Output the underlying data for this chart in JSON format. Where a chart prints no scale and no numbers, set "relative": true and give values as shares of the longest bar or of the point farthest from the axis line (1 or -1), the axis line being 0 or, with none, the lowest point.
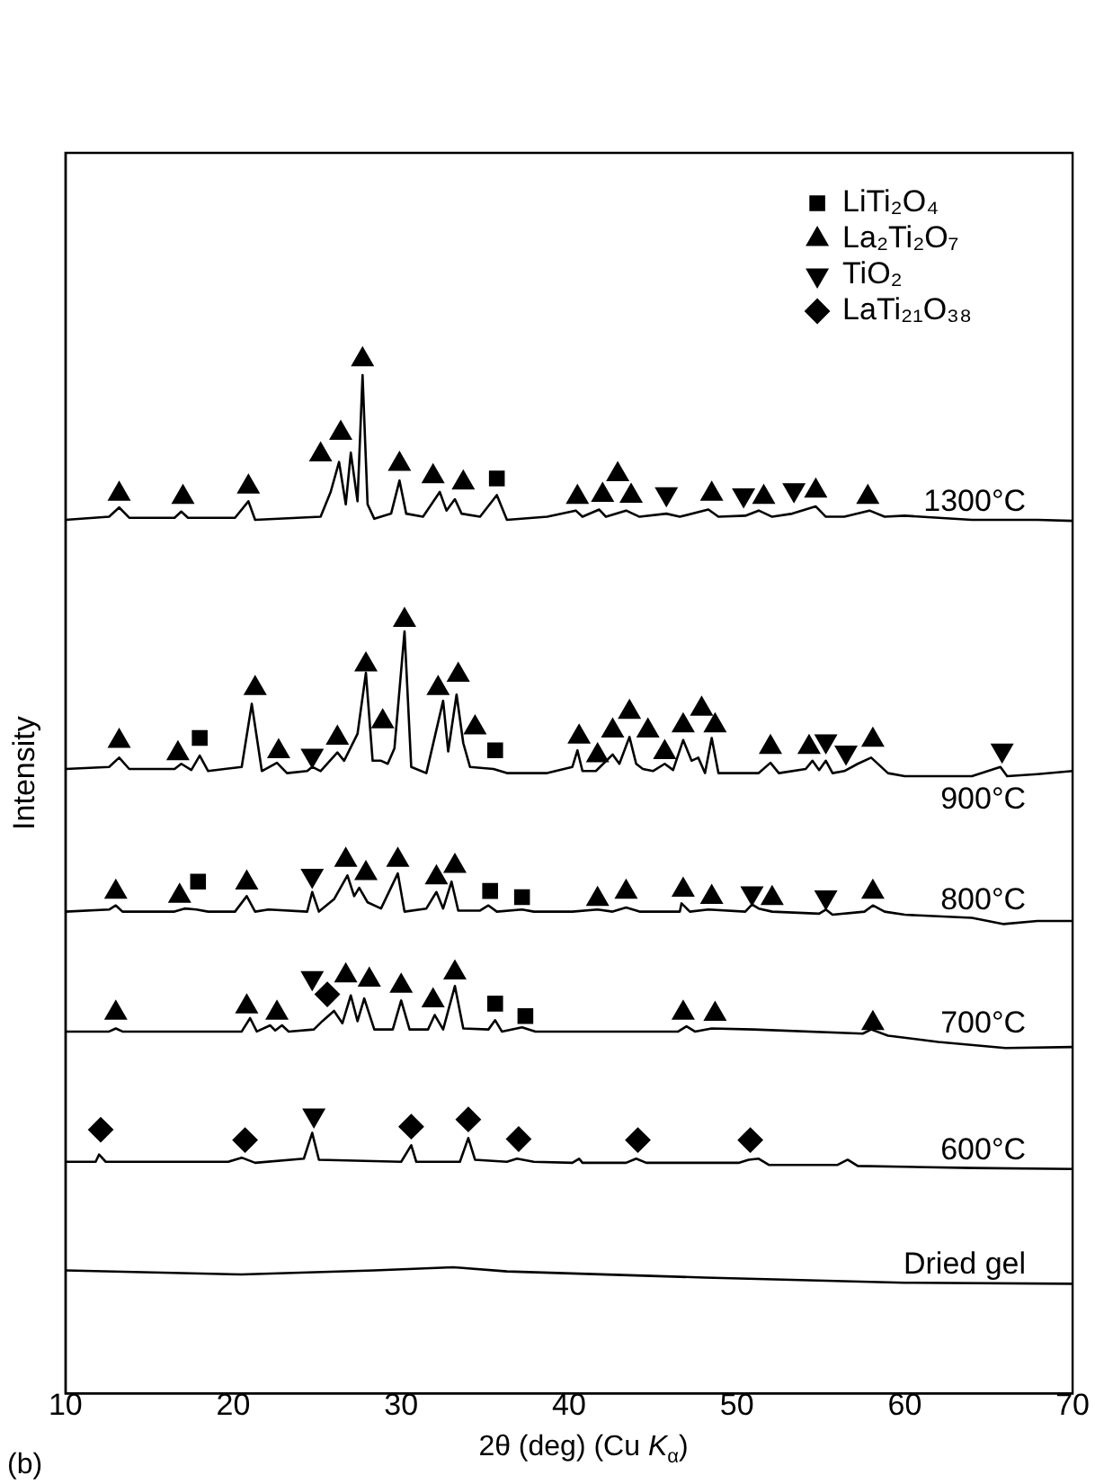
{
  "chart_data": {
    "type": "line",
    "relative": true,
    "xlim": [
      10,
      70
    ],
    "xticks": [
      10,
      20,
      30,
      40,
      50,
      60,
      70
    ],
    "xlabel": "2θ (deg) (Cu K$_{α}$)",
    "ylabel": "Intensity",
    "grid": false,
    "legend": "top right",
    "annotations": [
      "(b)"
    ],
    "series": [
      {
        "name": "1300°C",
        "type": "line",
        "marker": "none",
        "color": "#000000",
        "x": [
          10,
          12.6,
          13.2,
          13.8,
          16.5,
          16.9,
          17.3,
          20.1,
          20.9,
          21.3,
          25.2,
          25.8,
          26.3,
          26.7,
          27.0,
          27.4,
          27.7,
          28.0,
          28.4,
          29.4,
          29.9,
          30.3,
          31.3,
          32.3,
          32.7,
          33.2,
          33.6,
          34.7,
          35.7,
          36.3,
          38.7,
          40.4,
          40.8,
          41.8,
          42.2,
          43.4,
          44.2,
          45.8,
          46.6,
          48.3,
          48.9,
          50.5,
          51.3,
          52.1,
          53.3,
          54.7,
          55.3,
          56.4,
          57.9,
          58.8,
          60.0,
          64.0,
          67.9,
          70
        ],
        "values": [
          0.845,
          0.848,
          0.857,
          0.847,
          0.847,
          0.853,
          0.847,
          0.847,
          0.863,
          0.845,
          0.848,
          0.872,
          0.901,
          0.86,
          0.91,
          0.863,
          0.985,
          0.86,
          0.846,
          0.851,
          0.883,
          0.851,
          0.848,
          0.872,
          0.854,
          0.865,
          0.851,
          0.848,
          0.869,
          0.845,
          0.848,
          0.854,
          0.848,
          0.855,
          0.848,
          0.854,
          0.848,
          0.851,
          0.848,
          0.855,
          0.848,
          0.849,
          0.854,
          0.848,
          0.851,
          0.858,
          0.848,
          0.848,
          0.854,
          0.848,
          0.849,
          0.845,
          0.845,
          0.844
        ]
      },
      {
        "name": "900°C",
        "type": "line",
        "marker": "none",
        "color": "#000000",
        "x": [
          10,
          12.6,
          13.2,
          13.8,
          16.5,
          16.9,
          17.5,
          18.0,
          18.5,
          20.5,
          21.1,
          21.7,
          22.6,
          23.2,
          24.4,
          24.7,
          25.2,
          26.2,
          26.6,
          27.4,
          27.9,
          28.3,
          28.8,
          29.2,
          29.6,
          30.2,
          30.6,
          31.5,
          32.5,
          32.8,
          33.3,
          33.7,
          34.1,
          35.5,
          36.3,
          38.7,
          40.2,
          40.5,
          40.8,
          41.6,
          42.6,
          43.0,
          43.6,
          44.0,
          44.4,
          45.0,
          45.7,
          46.2,
          46.8,
          47.3,
          47.7,
          48.1,
          48.5,
          48.9,
          51.3,
          52.0,
          52.5,
          54.1,
          54.5,
          54.9,
          55.3,
          55.7,
          56.4,
          57.2,
          58.0,
          59.0,
          60.0,
          64.0,
          65.7,
          66.1,
          67.9,
          70
        ],
        "values": [
          0.604,
          0.606,
          0.615,
          0.604,
          0.604,
          0.609,
          0.603,
          0.617,
          0.602,
          0.606,
          0.667,
          0.602,
          0.61,
          0.6,
          0.602,
          0.606,
          0.602,
          0.62,
          0.612,
          0.638,
          0.697,
          0.612,
          0.612,
          0.609,
          0.624,
          0.737,
          0.606,
          0.6,
          0.67,
          0.621,
          0.676,
          0.629,
          0.606,
          0.604,
          0.6,
          0.6,
          0.606,
          0.622,
          0.602,
          0.602,
          0.618,
          0.609,
          0.635,
          0.609,
          0.604,
          0.602,
          0.609,
          0.603,
          0.632,
          0.612,
          0.615,
          0.6,
          0.634,
          0.6,
          0.6,
          0.61,
          0.6,
          0.604,
          0.612,
          0.603,
          0.612,
          0.6,
          0.602,
          0.609,
          0.615,
          0.6,
          0.597,
          0.597,
          0.606,
          0.597,
          0.599,
          0.602
        ]
      },
      {
        "name": "800°C",
        "type": "line",
        "marker": "none",
        "color": "#000000",
        "x": [
          10,
          12.6,
          13.0,
          13.4,
          16.5,
          17.1,
          17.8,
          18.5,
          20.1,
          20.8,
          21.3,
          22.1,
          24.4,
          24.7,
          25.1,
          26.0,
          26.8,
          27.2,
          27.5,
          28.0,
          28.8,
          29.8,
          30.2,
          31.5,
          32.1,
          32.5,
          33.0,
          33.4,
          34.7,
          35.2,
          35.7,
          37.2,
          37.9,
          40.2,
          41.7,
          42.6,
          43.4,
          44.2,
          46.6,
          46.7,
          47.2,
          48.3,
          50.5,
          50.9,
          51.3,
          52.1,
          54.9,
          55.3,
          55.7,
          57.6,
          58.1,
          58.8,
          60.0,
          64.0,
          65.9,
          67.9,
          70
        ],
        "values": [
          0.466,
          0.468,
          0.472,
          0.466,
          0.466,
          0.469,
          0.468,
          0.466,
          0.466,
          0.481,
          0.466,
          0.468,
          0.466,
          0.485,
          0.466,
          0.478,
          0.501,
          0.481,
          0.489,
          0.475,
          0.469,
          0.503,
          0.466,
          0.469,
          0.485,
          0.469,
          0.495,
          0.467,
          0.467,
          0.472,
          0.466,
          0.468,
          0.466,
          0.466,
          0.468,
          0.466,
          0.47,
          0.466,
          0.466,
          0.474,
          0.466,
          0.468,
          0.466,
          0.473,
          0.469,
          0.466,
          0.464,
          0.468,
          0.463,
          0.466,
          0.472,
          0.466,
          0.463,
          0.46,
          0.454,
          0.457,
          0.457
        ]
      },
      {
        "name": "700°C",
        "type": "line",
        "marker": "none",
        "color": "#000000",
        "x": [
          10,
          12.6,
          13.0,
          13.4,
          20.5,
          21.0,
          21.4,
          22.2,
          22.5,
          22.9,
          23.3,
          24.8,
          25.3,
          26.0,
          26.5,
          27.0,
          27.4,
          27.8,
          28.4,
          29.5,
          30.0,
          30.5,
          31.6,
          32.0,
          32.5,
          33.2,
          33.7,
          35.2,
          35.6,
          36.0,
          37.2,
          38.0,
          46.5,
          47.0,
          47.5,
          48.5,
          51.0,
          57.5,
          58.0,
          59.0,
          62.0,
          66.0,
          70
        ],
        "values": [
          0.35,
          0.35,
          0.353,
          0.35,
          0.35,
          0.363,
          0.35,
          0.356,
          0.351,
          0.356,
          0.35,
          0.352,
          0.36,
          0.37,
          0.358,
          0.385,
          0.36,
          0.382,
          0.352,
          0.352,
          0.38,
          0.352,
          0.352,
          0.366,
          0.352,
          0.394,
          0.353,
          0.352,
          0.361,
          0.35,
          0.354,
          0.35,
          0.35,
          0.355,
          0.35,
          0.353,
          0.352,
          0.348,
          0.352,
          0.346,
          0.34,
          0.334,
          0.335
        ]
      },
      {
        "name": "600°C",
        "type": "line",
        "marker": "none",
        "color": "#000000",
        "x": [
          10,
          11.8,
          12.0,
          12.4,
          19.7,
          20.5,
          21.3,
          24.2,
          24.7,
          25.1,
          30.0,
          30.6,
          30.9,
          33.5,
          34.0,
          34.4,
          36.3,
          36.9,
          37.9,
          40.2,
          40.6,
          40.8,
          43.4,
          44.0,
          44.6,
          50.1,
          50.7,
          51.3,
          51.9,
          56.0,
          56.6,
          57.2,
          64.0,
          70
        ],
        "values": [
          0.224,
          0.224,
          0.231,
          0.224,
          0.224,
          0.228,
          0.223,
          0.227,
          0.252,
          0.226,
          0.224,
          0.24,
          0.224,
          0.224,
          0.247,
          0.226,
          0.224,
          0.227,
          0.224,
          0.223,
          0.227,
          0.223,
          0.223,
          0.227,
          0.223,
          0.223,
          0.226,
          0.227,
          0.221,
          0.221,
          0.226,
          0.22,
          0.218,
          0.217
        ]
      },
      {
        "name": "Dried gel",
        "type": "line",
        "marker": "none",
        "color": "#000000",
        "x": [
          10,
          20.5,
          28.4,
          33.1,
          36.3,
          48.1,
          60.0,
          70
        ],
        "values": [
          0.119,
          0.115,
          0.119,
          0.122,
          0.118,
          0.112,
          0.107,
          0.106
        ]
      },
      {
        "name": "LiTi₂O₄",
        "type": "scatter",
        "marker": "square",
        "color": "#000000",
        "x": [
          35.7,
          18.0,
          35.6,
          17.9,
          35.3,
          37.2,
          35.6,
          37.4
        ],
        "values": [
          0.885,
          0.634,
          0.622,
          0.495,
          0.486,
          0.48,
          0.377,
          0.365
        ]
      },
      {
        "name": "La₂Ti₂O₇",
        "type": "scatter",
        "marker": "triangle",
        "color": "#000000",
        "x": [
          13.2,
          17.0,
          20.9,
          25.2,
          26.4,
          27.7,
          29.9,
          31.9,
          33.7,
          40.5,
          42.0,
          42.9,
          43.7,
          48.5,
          51.6,
          54.7,
          57.8,
          13.2,
          16.7,
          21.3,
          22.7,
          26.2,
          27.9,
          28.9,
          30.2,
          32.2,
          33.4,
          34.4,
          40.6,
          41.7,
          42.6,
          43.6,
          44.7,
          45.7,
          46.8,
          47.9,
          48.7,
          52.0,
          54.3,
          58.1,
          13.0,
          16.8,
          20.8,
          26.7,
          27.9,
          29.8,
          32.1,
          33.2,
          41.7,
          43.4,
          46.8,
          48.5,
          52.1,
          58.1,
          13.0,
          20.8,
          22.6,
          26.7,
          28.1,
          30.0,
          31.9,
          33.2,
          46.8,
          48.7,
          58.1
        ],
        "values": [
          0.87,
          0.867,
          0.877,
          0.908,
          0.929,
          1.0,
          0.899,
          0.887,
          0.881,
          0.867,
          0.869,
          0.889,
          0.868,
          0.87,
          0.867,
          0.873,
          0.867,
          0.631,
          0.619,
          0.682,
          0.621,
          0.634,
          0.705,
          0.65,
          0.748,
          0.682,
          0.695,
          0.644,
          0.635,
          0.617,
          0.641,
          0.659,
          0.641,
          0.62,
          0.646,
          0.662,
          0.646,
          0.625,
          0.625,
          0.632,
          0.485,
          0.481,
          0.494,
          0.516,
          0.503,
          0.516,
          0.499,
          0.51,
          0.478,
          0.485,
          0.487,
          0.48,
          0.479,
          0.485,
          0.368,
          0.374,
          0.368,
          0.404,
          0.4,
          0.394,
          0.38,
          0.407,
          0.368,
          0.367,
          0.358
        ]
      },
      {
        "name": "TiO₂",
        "type": "scatter",
        "marker": "triangle-down",
        "color": "#000000",
        "x": [
          45.8,
          50.4,
          53.4,
          24.7,
          55.3,
          56.5,
          65.8,
          24.7,
          50.9,
          55.3,
          24.7,
          24.8
        ],
        "values": [
          0.87,
          0.869,
          0.874,
          0.617,
          0.631,
          0.62,
          0.622,
          0.501,
          0.484,
          0.48,
          0.402,
          0.269
        ]
      },
      {
        "name": "LaTi₂₁O₃₈",
        "type": "scatter",
        "marker": "diamond",
        "color": "#000000",
        "x": [
          25.6,
          12.1,
          20.7,
          30.6,
          34.0,
          37.0,
          44.1,
          50.8
        ],
        "values": [
          0.386,
          0.255,
          0.245,
          0.258,
          0.265,
          0.246,
          0.245,
          0.245
        ]
      }
    ]
  }
}
